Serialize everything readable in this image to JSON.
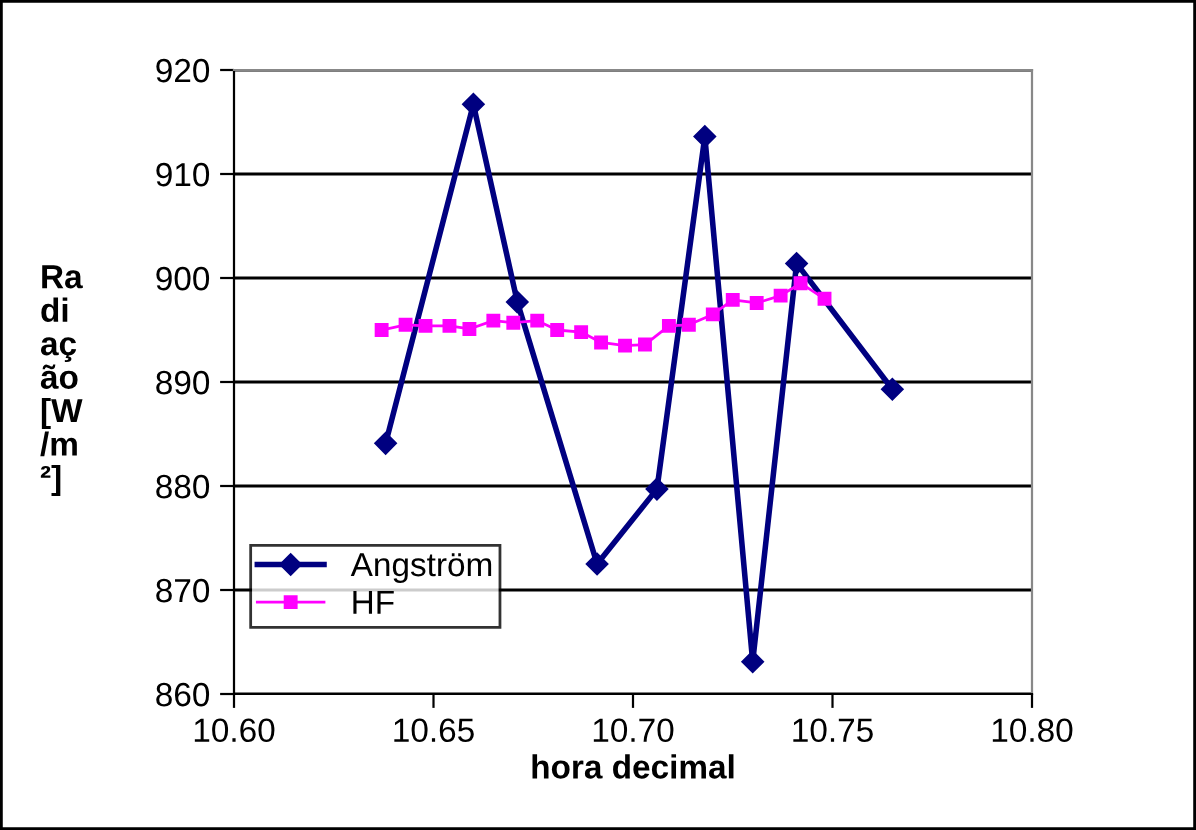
{
  "chart_data": {
    "type": "line",
    "xlabel": "hora decimal",
    "ylabel": "Radiação [W/m²]",
    "xlim": [
      10.6,
      10.8
    ],
    "xticks": [
      {
        "value": 10.6,
        "label": "10.60"
      },
      {
        "value": 10.65,
        "label": "10.65"
      },
      {
        "value": 10.7,
        "label": "10.70"
      },
      {
        "value": 10.75,
        "label": "10.75"
      },
      {
        "value": 10.8,
        "label": "10.80"
      }
    ],
    "ylim": [
      860,
      920
    ],
    "yticks": [
      860,
      870,
      880,
      890,
      900,
      910,
      920
    ],
    "grid": "y",
    "legend": "bottom left",
    "series": [
      {
        "name": "Angström",
        "color": "#000080",
        "marker": "diamond",
        "x": [
          10.638,
          10.66,
          10.671,
          10.691,
          10.706,
          10.718,
          10.73,
          10.741,
          10.765
        ],
        "values": [
          884.1,
          916.7,
          897.7,
          872.5,
          879.7,
          913.6,
          863.1,
          901.4,
          889.3
        ]
      },
      {
        "name": "HF",
        "color": "#ff00ff",
        "marker": "square",
        "x": [
          10.637,
          10.643,
          10.648,
          10.654,
          10.659,
          10.665,
          10.67,
          10.676,
          10.681,
          10.687,
          10.692,
          10.698,
          10.703,
          10.709,
          10.714,
          10.72,
          10.725,
          10.731,
          10.737,
          10.742,
          10.748
        ],
        "values": [
          895.0,
          895.5,
          895.4,
          895.4,
          895.1,
          895.9,
          895.7,
          895.9,
          895.0,
          894.8,
          893.8,
          893.5,
          893.6,
          895.4,
          895.5,
          896.5,
          897.9,
          897.6,
          898.3,
          899.5,
          898.0
        ]
      }
    ]
  }
}
